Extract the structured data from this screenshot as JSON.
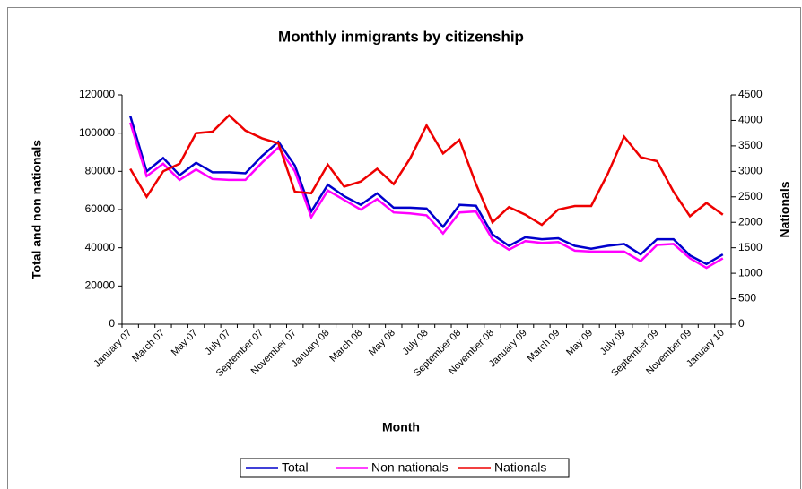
{
  "chart_data": {
    "type": "line",
    "title": "Monthly inmigrants by citizenship",
    "x_label": "Month",
    "y_label": "Total and non nationals",
    "y2_label": "Nationals",
    "categories": [
      "January 07",
      null,
      "March 07",
      null,
      "May 07",
      null,
      "July 07",
      null,
      "September 07",
      null,
      "November 07",
      null,
      "January 08",
      null,
      "March 08",
      null,
      "May 08",
      null,
      "July 08",
      null,
      "September 08",
      null,
      "November 08",
      null,
      "January 09",
      null,
      "March 09",
      null,
      "May 09",
      null,
      "July 09",
      null,
      "September 09",
      null,
      "November 09",
      null,
      "January 10"
    ],
    "series": [
      {
        "name": "Total",
        "color": "#0000cc",
        "values": [
          109000,
          80000,
          87000,
          78000,
          84500,
          79500,
          79500,
          79000,
          88000,
          95500,
          83000,
          59000,
          73000,
          67000,
          62500,
          68500,
          61000,
          61000,
          60500,
          51000,
          62500,
          62000,
          47000,
          41000,
          45500,
          44500,
          45000,
          41000,
          39500,
          41000,
          42000,
          36500,
          44500,
          44500,
          36000,
          31500,
          36500
        ]
      },
      {
        "name": "Non nationals",
        "color": "#ff00ff",
        "values": [
          105500,
          77500,
          84000,
          75500,
          81000,
          76000,
          75500,
          75500,
          84500,
          92500,
          80000,
          56000,
          70000,
          65000,
          60000,
          65500,
          58500,
          58000,
          57000,
          47500,
          58500,
          59000,
          44500,
          39000,
          43500,
          42500,
          43000,
          38500,
          38000,
          38000,
          38000,
          33000,
          41500,
          42000,
          34500,
          29500,
          34500
        ]
      },
      {
        "name": "Nationals",
        "color": "#ee0000",
        "axis": "y2",
        "values": [
          3050,
          2500,
          3000,
          3150,
          3750,
          3780,
          4100,
          3800,
          3650,
          3550,
          2600,
          2570,
          3130,
          2700,
          2800,
          3050,
          2750,
          3250,
          3900,
          3350,
          3620,
          2750,
          2000,
          2300,
          2150,
          1950,
          2250,
          2320,
          2320,
          2950,
          3680,
          3280,
          3200,
          2600,
          2120,
          2380,
          2150
        ]
      }
    ],
    "ylim": [
      0,
      120000
    ],
    "yticks": [
      0,
      20000,
      40000,
      60000,
      80000,
      100000,
      120000
    ],
    "y2lim": [
      0,
      4500
    ],
    "y2ticks": [
      0,
      500,
      1000,
      1500,
      2000,
      2500,
      3000,
      3500,
      4000,
      4500
    ],
    "legend": "bottom"
  }
}
